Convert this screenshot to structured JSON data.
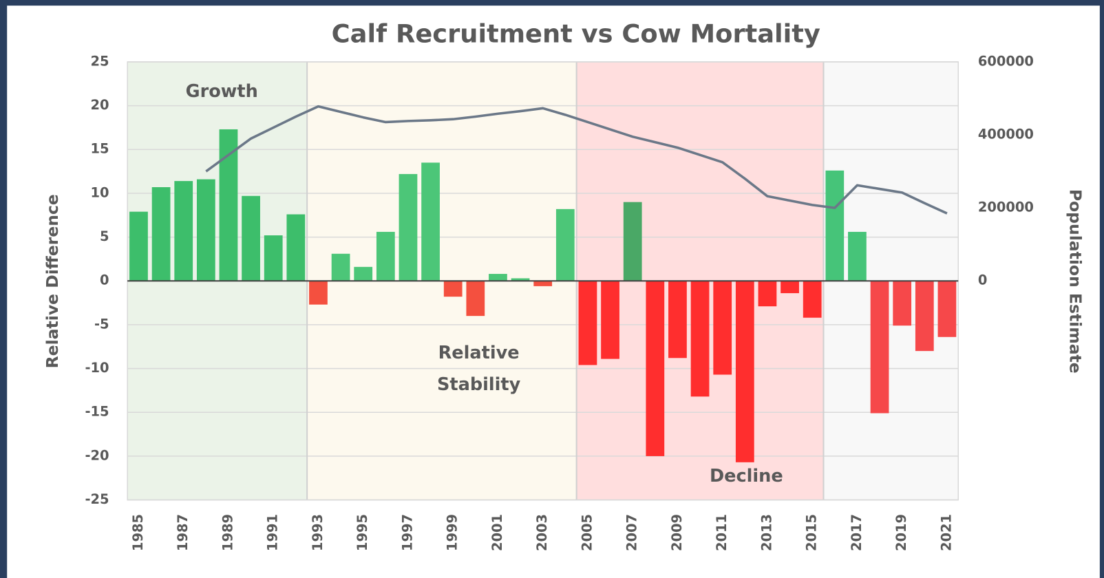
{
  "chart_data": {
    "type": "bar",
    "title": "Calf Recruitment vs Cow Mortality",
    "y_label": "Relative Difference",
    "y2_label": "Population Estimate",
    "x": [
      1985,
      1986,
      1987,
      1988,
      1989,
      1990,
      1991,
      1992,
      1993,
      1994,
      1995,
      1996,
      1997,
      1998,
      1999,
      2000,
      2001,
      2002,
      2003,
      2004,
      2005,
      2006,
      2007,
      2008,
      2009,
      2010,
      2011,
      2012,
      2013,
      2014,
      2015,
      2016,
      2017,
      2018,
      2019,
      2020,
      2021
    ],
    "xlim": [
      1984.5,
      2021.5
    ],
    "xticks": [
      1985,
      1987,
      1989,
      1991,
      1993,
      1995,
      1997,
      1999,
      2001,
      2003,
      2005,
      2007,
      2009,
      2011,
      2013,
      2015,
      2017,
      2019,
      2021
    ],
    "ylim": [
      -25,
      25
    ],
    "yticks": [
      -25,
      -20,
      -15,
      -10,
      -5,
      0,
      5,
      10,
      15,
      20,
      25
    ],
    "y2lim": [
      -600000,
      600000
    ],
    "y2ticks": [
      0,
      200000,
      400000,
      600000
    ],
    "grid": true,
    "series": [
      {
        "type": "bar",
        "values": [
          7.9,
          10.7,
          11.4,
          11.6,
          17.3,
          9.7,
          5.2,
          7.6,
          -2.7,
          3.1,
          1.6,
          5.6,
          12.2,
          13.5,
          -1.8,
          -4.0,
          0.8,
          0.3,
          -0.6,
          8.2,
          -9.6,
          -8.9,
          9.0,
          -20.0,
          -8.8,
          -13.2,
          -10.7,
          -20.7,
          -2.9,
          -1.4,
          -4.2,
          12.6,
          5.6,
          -15.1,
          -5.1,
          -8.0,
          -6.4
        ],
        "colors": [
          "#3dbe6b",
          "#3dbe6b",
          "#3dbe6b",
          "#3dbe6b",
          "#3dbe6b",
          "#3dbe6b",
          "#3dbe6b",
          "#3dbe6b",
          "#f4503f",
          "#4cc678",
          "#4cc678",
          "#4cc678",
          "#4cc678",
          "#4cc678",
          "#f4503f",
          "#f4503f",
          "#4cc678",
          "#4cc678",
          "#f4503f",
          "#4cc678",
          "#ff2e2e",
          "#ff2e2e",
          "#4aa866",
          "#ff2e2e",
          "#ff2e2e",
          "#ff2e2e",
          "#ff2e2e",
          "#ff2e2e",
          "#ff2e2e",
          "#ff2e2e",
          "#ff2e2e",
          "#46c479",
          "#46c479",
          "#f6484a",
          "#f6484a",
          "#f6484a",
          "#f6484a"
        ]
      },
      {
        "type": "line",
        "axis": "y2",
        "color": "#6b7888",
        "values": [
          null,
          null,
          null,
          300000,
          345000,
          390000,
          420000,
          450000,
          478000,
          463000,
          448000,
          435000,
          438000,
          440000,
          443000,
          450000,
          458000,
          465000,
          473000,
          455000,
          435000,
          415000,
          395000,
          380000,
          365000,
          345000,
          325000,
          280000,
          232000,
          220000,
          208000,
          200000,
          262000,
          252000,
          242000,
          213000,
          185000
        ]
      }
    ],
    "regions": [
      {
        "label": [
          "Growth"
        ],
        "years": [
          1985,
          1992
        ],
        "color": "#ebf3e8"
      },
      {
        "label": [
          "Relative",
          "Stability"
        ],
        "years": [
          1993,
          2004
        ],
        "color": "#fdf9ee"
      },
      {
        "label": [
          "Decline"
        ],
        "years": [
          2005,
          2015
        ],
        "color": "#ffdede"
      },
      {
        "years": [
          2016,
          2021
        ],
        "color": "#f8f8f8"
      }
    ]
  }
}
